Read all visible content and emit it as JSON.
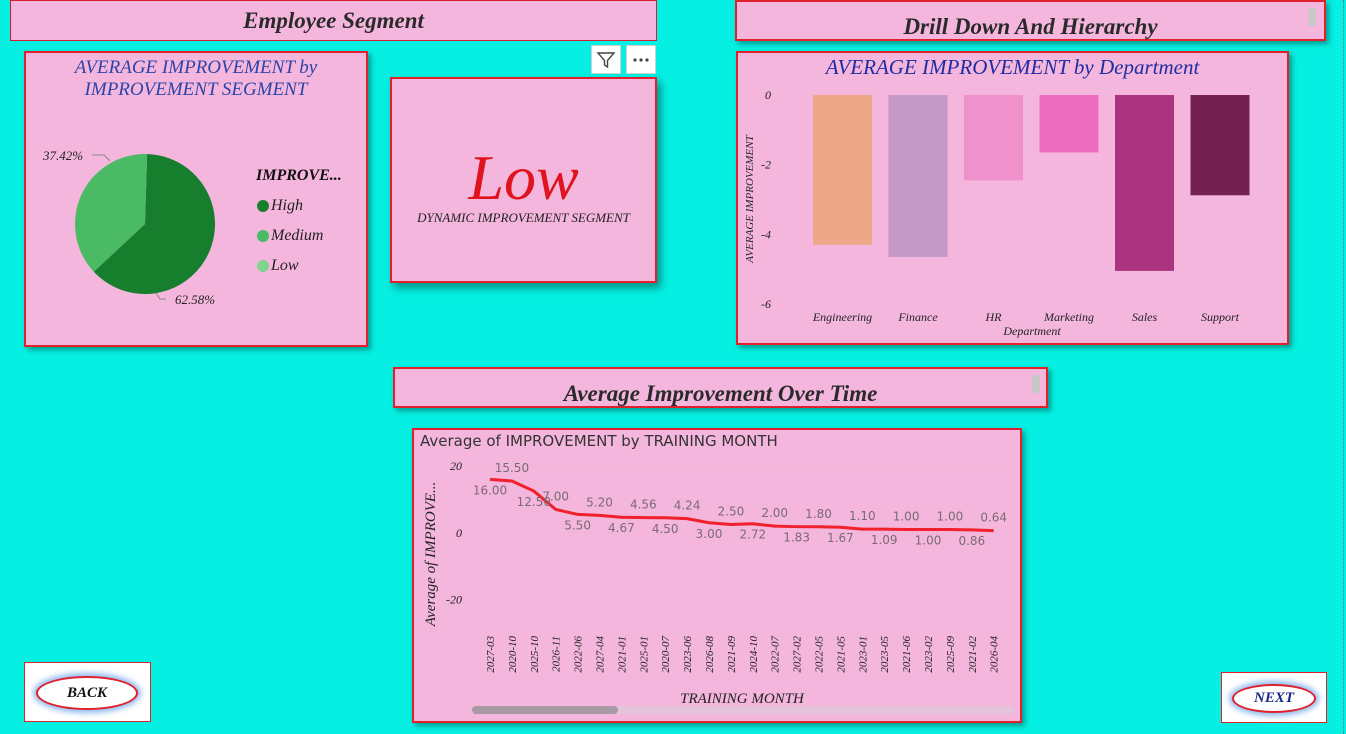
{
  "headers": {
    "employee_segment": "Employee Segment",
    "drill_down": "Drill Down And Hierarchy",
    "over_time": "Average Improvement Over Time"
  },
  "pie": {
    "title_line1": "AVERAGE IMPROVEMENT by",
    "title_line2": "IMPROVEMENT SEGMENT",
    "label_a": "37.42%",
    "label_b": "62.58%",
    "legend_title": "IMPROVE...",
    "legend": [
      "High",
      "Medium",
      "Low"
    ],
    "colors": {
      "high": "#177e2d",
      "medium": "#4aba65",
      "low": "#7fd48f"
    }
  },
  "card": {
    "value": "Low",
    "label": "DYNAMIC IMPROVEMENT SEGMENT",
    "filter_icon": "filter-icon",
    "more_icon": "more-options-icon"
  },
  "chart_data": [
    {
      "type": "pie",
      "title": "AVERAGE IMPROVEMENT by IMPROVEMENT SEGMENT",
      "categories": [
        "High",
        "Medium"
      ],
      "values": [
        62.58,
        37.42
      ],
      "legend_title": "IMPROVE..."
    },
    {
      "type": "bar",
      "title": "AVERAGE IMPROVEMENT by Department",
      "xlabel": "Department",
      "ylabel": "AVERAGE IMPROVEMENT",
      "categories": [
        "Engineering",
        "Finance",
        "HR",
        "Marketing",
        "Sales",
        "Support"
      ],
      "values": [
        -4.3,
        -4.65,
        -2.45,
        -1.65,
        -5.05,
        -2.88
      ],
      "colors": [
        "#eda88a",
        "#c499c8",
        "#ef91cb",
        "#ec6dbd",
        "#aa3480",
        "#722150"
      ],
      "yticks": [
        0,
        -2,
        -4,
        -6
      ],
      "ylim": [
        -6,
        0
      ]
    },
    {
      "type": "line",
      "title": "Average of IMPROVEMENT by TRAINING MONTH",
      "xlabel": "TRAINING MONTH",
      "ylabel": "Average of IMPROVE...",
      "x": [
        "2027-03",
        "2020-10",
        "2025-10",
        "2026-11",
        "2022-06",
        "2027-04",
        "2021-01",
        "2025-01",
        "2020-07",
        "2023-06",
        "2026-08",
        "2021-09",
        "2024-10",
        "2022-07",
        "2027-02",
        "2022-05",
        "2021-05",
        "2023-01",
        "2023-05",
        "2021-06",
        "2023-02",
        "2025-09",
        "2021-02",
        "2026-04"
      ],
      "y": [
        16.0,
        15.5,
        12.5,
        7.0,
        5.5,
        5.2,
        4.67,
        4.56,
        4.5,
        4.24,
        3.0,
        2.5,
        2.72,
        2.0,
        1.83,
        1.8,
        1.67,
        1.1,
        1.09,
        1.0,
        1.0,
        1.0,
        0.86,
        0.64
      ],
      "yticks": [
        20,
        0,
        -20
      ],
      "ylim": [
        -30,
        20
      ],
      "line_color": "#f0202c"
    }
  ],
  "nav": {
    "back": "BACK",
    "next": "NEXT"
  }
}
